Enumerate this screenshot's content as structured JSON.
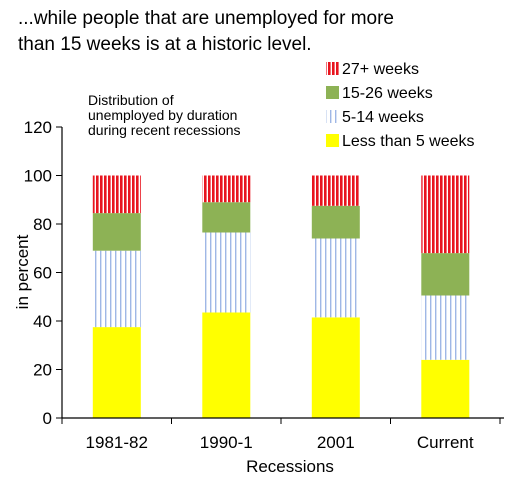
{
  "headline": {
    "line1": "...while people that are unemployed for more",
    "line2": "than 15 weeks is at a historic level."
  },
  "chart_data": {
    "type": "bar",
    "stacked": true,
    "annotation": [
      "Distribution of",
      "unemployed  by duration",
      "during recent recessions"
    ],
    "xlabel": "Recessions",
    "ylabel": "in percent",
    "ylim": [
      0,
      120
    ],
    "yticks": [
      0,
      20,
      40,
      60,
      80,
      100,
      120
    ],
    "categories": [
      "1981-82",
      "1990-1",
      "2001",
      "Current"
    ],
    "series": [
      {
        "name": "Less than 5 weeks",
        "values": [
          37.5,
          43.5,
          41.5,
          24
        ],
        "color": "#ffff00",
        "pattern": "solid"
      },
      {
        "name": "5-14 weeks",
        "values": [
          31.5,
          33,
          32.5,
          26.5
        ],
        "color": "#9fb7e6",
        "pattern": "vertical-lines"
      },
      {
        "name": "15-26 weeks",
        "values": [
          15.5,
          12.5,
          13.5,
          17.5
        ],
        "color": "#8db255",
        "pattern": "solid"
      },
      {
        "name": "27+ weeks",
        "values": [
          15.5,
          11,
          12.5,
          32
        ],
        "color": "#e8141e",
        "pattern": "vertical-lines"
      }
    ],
    "legend_position": "top-right",
    "legend_order": [
      "27+ weeks",
      "15-26 weeks",
      "5-14 weeks",
      "Less than 5 weeks"
    ]
  }
}
